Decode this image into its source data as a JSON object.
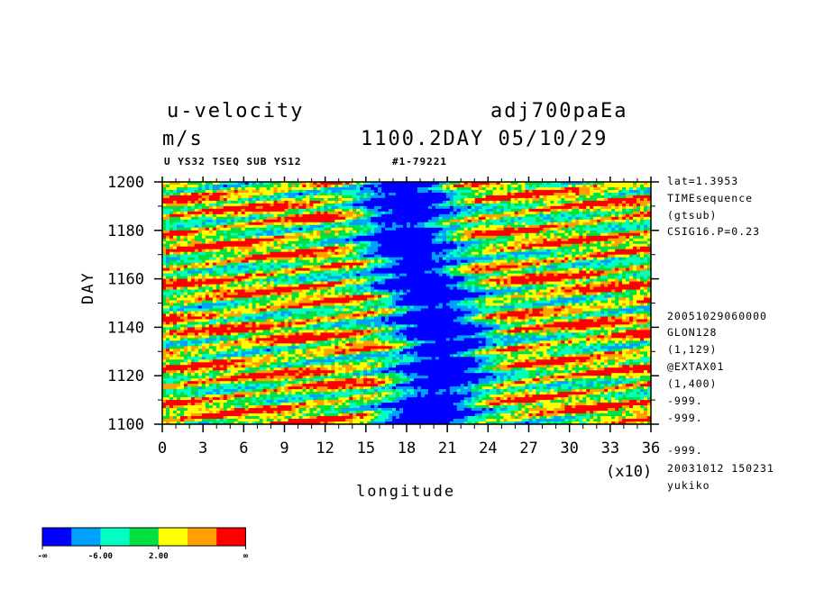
{
  "header": {
    "title_left": "u-velocity",
    "title_right": "adj700paEa",
    "units": "m/s",
    "time_label": "1100.2DAY 05/10/29",
    "subtitle_left": "U YS32 TSEQ SUB YS12",
    "subtitle_right": "#1-79221"
  },
  "side_info": {
    "top": [
      "lat=1.3953",
      "TIMEsequence",
      "(gtsub)",
      "CSIG16.P=0.23"
    ],
    "bottom": [
      "20051029060000",
      "GLON128",
      "(1,129)",
      "@EXTAX01",
      "(1,400)",
      "-999.",
      "-999.",
      "-999.",
      "20031012 150231",
      "yukiko"
    ]
  },
  "colorbar": {
    "colors": [
      "#0000ff",
      "#00a0ff",
      "#00ffc0",
      "#00e040",
      "#ffff00",
      "#ffa000",
      "#ff0000"
    ],
    "labels": [
      "-∞",
      "-6.00",
      "2.00",
      "∞"
    ]
  },
  "chart_data": {
    "type": "heatmap",
    "title": "u-velocity",
    "xlabel": "longitude",
    "ylabel": "DAY",
    "x_scale_note": "(x10)",
    "xlim": [
      0,
      36
    ],
    "ylim": [
      1100,
      1200
    ],
    "x_ticks": [
      "0",
      "3",
      "6",
      "9",
      "12",
      "15",
      "18",
      "21",
      "24",
      "27",
      "30",
      "33",
      "36"
    ],
    "y_ticks": [
      "1100",
      "1120",
      "1140",
      "1160",
      "1180",
      "1200"
    ],
    "x_tick_values": [
      0,
      3,
      6,
      9,
      12,
      15,
      18,
      21,
      24,
      27,
      30,
      33,
      36
    ],
    "y_tick_values": [
      1100,
      1120,
      1140,
      1160,
      1180,
      1200
    ],
    "levels": [
      "-∞",
      "-6.00",
      "2.00",
      "∞"
    ],
    "colors": [
      "#0000ff",
      "#00a0ff",
      "#00ffc0",
      "#00e040",
      "#ffff00",
      "#ffa000",
      "#ff0000"
    ]
  }
}
